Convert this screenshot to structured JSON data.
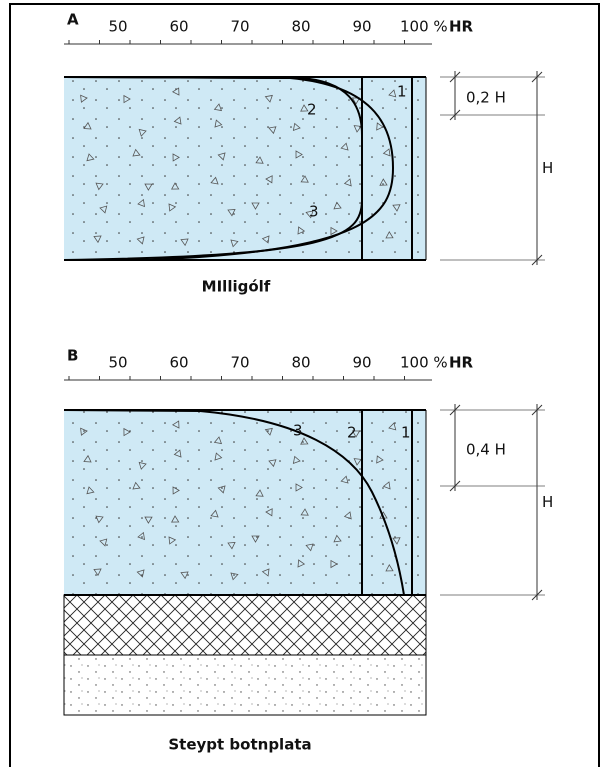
{
  "panel_a": {
    "label": "A",
    "scale": [
      "50",
      "60",
      "70",
      "80",
      "90"
    ],
    "scale_end": "100 %",
    "scale_unit": "HR",
    "curves": [
      "1",
      "2",
      "3"
    ],
    "top_zone": "0,2 H",
    "height": "H",
    "caption": "MIlligólf"
  },
  "panel_b": {
    "label": "B",
    "scale": [
      "50",
      "60",
      "70",
      "80",
      "90"
    ],
    "scale_end": "100 %",
    "scale_unit": "HR",
    "curves": [
      "3",
      "2",
      "1"
    ],
    "top_zone": "0,4 H",
    "height": "H",
    "caption": "Steypt botnplata"
  }
}
